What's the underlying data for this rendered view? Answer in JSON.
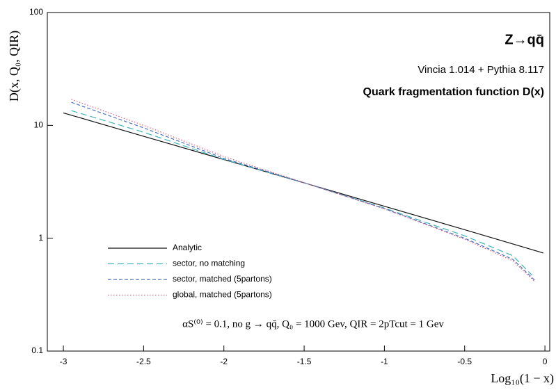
{
  "chart_data": {
    "type": "line",
    "title": "Z→qq̄",
    "subtitle": "Vincia 1.014 + Pythia 8.117",
    "subtitle2": "Quark fragmentation function D(x)",
    "annotation": "αS⁽⁰⁾ = 0.1, no g → qq̄, Q₀ = 1000 Gev, QIR = 2pTcut = 1 Gev",
    "x_label": "Log₁₀(1 − x)",
    "y_label": "D(x, Q₀, QIR)",
    "y_log": true,
    "xlim": [
      -3.1,
      0.03
    ],
    "ylim": [
      0.1,
      100
    ],
    "xticks": [
      -3,
      -2.5,
      -2,
      -1.5,
      -1,
      -0.5,
      0
    ],
    "yticks": [
      0.1,
      1,
      10,
      100
    ],
    "legend_position": "lower left",
    "series": [
      {
        "name": "Analytic",
        "color": "#111111",
        "dash": "solid",
        "x": [
          -3,
          -2.5,
          -2,
          -1.5,
          -1,
          -0.5,
          -0.01
        ],
        "values": [
          12.9,
          8.0,
          4.98,
          3.09,
          1.92,
          1.19,
          0.74
        ]
      },
      {
        "name": "sector, no matching",
        "color": "#3bb5b5",
        "dash": "long",
        "x": [
          -2.95,
          -2.5,
          -2,
          -1.5,
          -1,
          -0.5,
          -0.2,
          -0.08
        ],
        "values": [
          13.5,
          8.7,
          5.0,
          3.1,
          1.85,
          1.05,
          0.7,
          0.47
        ]
      },
      {
        "name": "sector, matched (5partons)",
        "color": "#4a6fc4",
        "dash": "short",
        "x": [
          -2.95,
          -2.5,
          -2,
          -1.5,
          -1,
          -0.5,
          -0.2,
          -0.06
        ],
        "values": [
          16,
          9.5,
          5.1,
          3.1,
          1.83,
          1.0,
          0.65,
          0.42
        ]
      },
      {
        "name": "global, matched (5partons)",
        "color": "#e05a7a",
        "dash": "dot",
        "x": [
          -2.95,
          -2.5,
          -2,
          -1.5,
          -1,
          -0.5,
          -0.2,
          -0.06
        ],
        "values": [
          17,
          10,
          5.3,
          3.1,
          1.82,
          0.98,
          0.63,
          0.41
        ]
      }
    ]
  }
}
